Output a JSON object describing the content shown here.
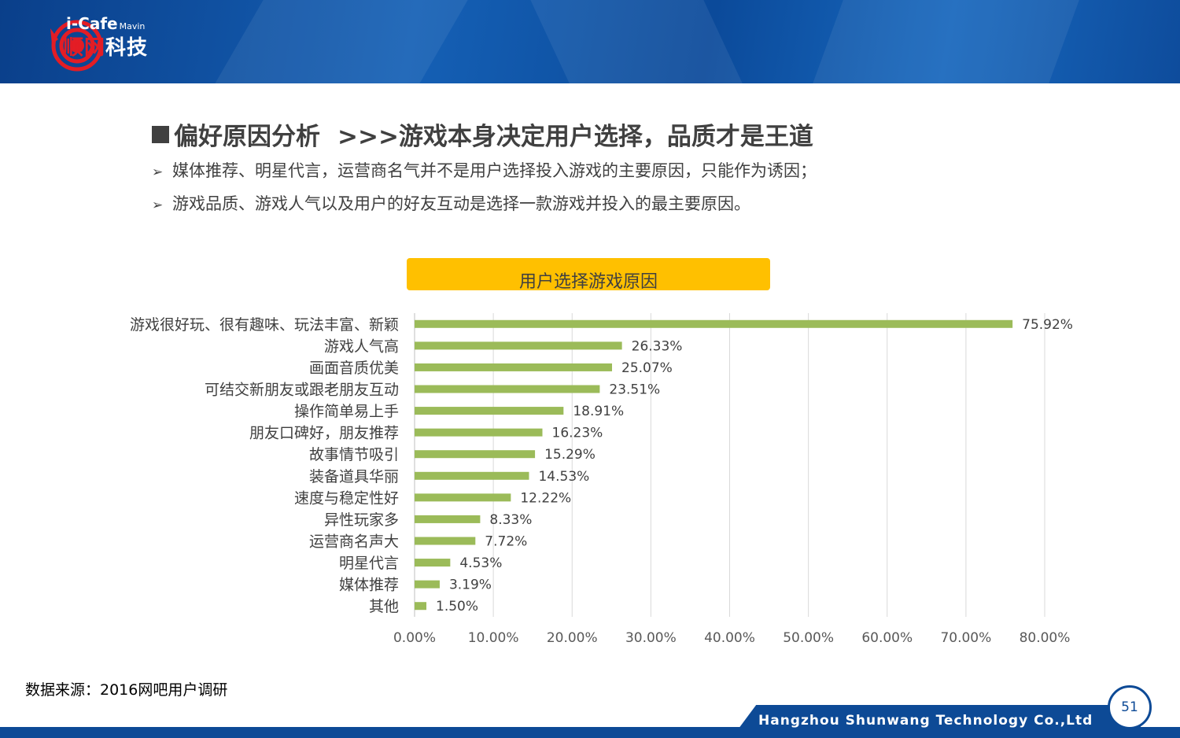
{
  "logo": {
    "brand_top": "i-Cafe",
    "brand_small": "Mavin",
    "brand_cn_red": "顺网",
    "brand_cn_white": "科技"
  },
  "slide": {
    "title_main": "偏好原因分析",
    "title_sub": ">>>游戏本身决定用户选择，品质才是王道",
    "bullets": [
      "媒体推荐、明星代言，运营商名气并不是用户选择投入游戏的主要原因，只能作为诱因；",
      "游戏品质、游戏人气以及用户的好友互动是选择一款游戏并投入的最主要原因。"
    ],
    "source": "数据来源：2016网吧用户调研"
  },
  "footer": {
    "company": "Hangzhou Shunwang Technology Co.,Ltd",
    "page": "51"
  },
  "colors": {
    "bar": "#9bbb59",
    "title_bg": "#ffc000",
    "header": "#0d4a96",
    "text": "#404040"
  },
  "chart_data": {
    "type": "bar",
    "orientation": "horizontal",
    "title": "用户选择游戏原因",
    "categories": [
      "游戏很好玩、很有趣味、玩法丰富、新颖",
      "游戏人气高",
      "画面音质优美",
      "可结交新朋友或跟老朋友互动",
      "操作简单易上手",
      "朋友口碑好，朋友推荐",
      "故事情节吸引",
      "装备道具华丽",
      "速度与稳定性好",
      "异性玩家多",
      "运营商名声大",
      "明星代言",
      "媒体推荐",
      "其他"
    ],
    "values": [
      75.92,
      26.33,
      25.07,
      23.51,
      18.91,
      16.23,
      15.29,
      14.53,
      12.22,
      8.33,
      7.72,
      4.53,
      3.19,
      1.5
    ],
    "value_labels": [
      "75.92%",
      "26.33%",
      "25.07%",
      "23.51%",
      "18.91%",
      "16.23%",
      "15.29%",
      "14.53%",
      "12.22%",
      "8.33%",
      "7.72%",
      "4.53%",
      "3.19%",
      "1.50%"
    ],
    "xlim": [
      0,
      80
    ],
    "x_ticks": [
      "0.00%",
      "10.00%",
      "20.00%",
      "30.00%",
      "40.00%",
      "50.00%",
      "60.00%",
      "70.00%",
      "80.00%"
    ],
    "grid": true,
    "legend": "none"
  }
}
